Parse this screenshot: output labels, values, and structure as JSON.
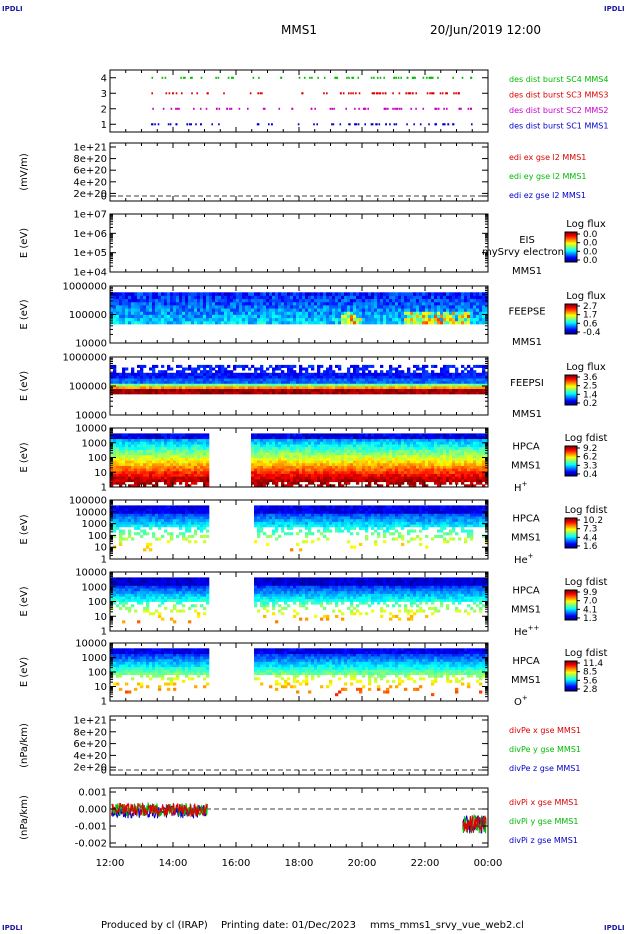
{
  "header": {
    "corner_tl": "IPDLI",
    "corner_tr": "IPDLI",
    "corner_bl": "IPDLI",
    "corner_br": "IPDLI",
    "spacecraft": "MMS1",
    "datetime": "20/Jun/2019 12:00"
  },
  "footer": {
    "produced": "Produced by cl (IRAP)",
    "printing": "Printing date: 01/Dec/2023",
    "file": "mms_mms1_srvy_vue_web2.cl"
  },
  "chart_data": [
    {
      "type": "scatter",
      "yticks": [
        "4",
        "3",
        "2",
        "1"
      ],
      "ylim": [
        0.5,
        4.5
      ],
      "series": [
        {
          "name": "des dist burst SC1 MMS1",
          "y": 1,
          "color": "#0000cc"
        },
        {
          "name": "des dist burst SC2 MMS2",
          "y": 2,
          "color": "#cc00cc"
        },
        {
          "name": "des dist burst SC3 MMS3",
          "y": 3,
          "color": "#dd0000"
        },
        {
          "name": "des dist burst SC4 MMS4",
          "y": 4,
          "color": "#00bb00"
        }
      ]
    },
    {
      "type": "line",
      "ylabel": "(mV/m)",
      "yticks": [
        "1e+21",
        "8e+20",
        "6e+20",
        "4e+20",
        "2e+20",
        "0"
      ],
      "series": [
        {
          "name": "edi ex gse l2 MMS1",
          "color": "#dd0000"
        },
        {
          "name": "edi ey gse l2 MMS1",
          "color": "#00bb00"
        },
        {
          "name": "edi ez gse l2 MMS1",
          "color": "#0000cc"
        }
      ]
    },
    {
      "type": "heatmap",
      "ylabel": "E (eV)",
      "yticks": [
        "1e+07",
        "1e+06",
        "1e+05",
        "1e+04"
      ],
      "instrument": [
        "EIS",
        "MMS1"
      ],
      "overlay_text": "mySrvy electron to",
      "colorbar": {
        "title": "Log flux",
        "ticks": [
          "0.0",
          "0.0",
          "0.0",
          "0.0"
        ]
      }
    },
    {
      "type": "heatmap",
      "ylabel": "E (eV)",
      "yticks": [
        "1000000",
        "100000",
        "10000"
      ],
      "instrument": [
        "FEEPSE",
        "MMS1"
      ],
      "colorbar": {
        "title": "Log flux",
        "ticks": [
          "2.7",
          "1.7",
          "0.6",
          "-0.4"
        ]
      }
    },
    {
      "type": "heatmap",
      "ylabel": "E (eV)",
      "yticks": [
        "1000000",
        "100000",
        "10000"
      ],
      "instrument": [
        "FEEPSI",
        "MMS1"
      ],
      "colorbar": {
        "title": "Log flux",
        "ticks": [
          "3.6",
          "2.5",
          "1.4",
          "0.2"
        ]
      }
    },
    {
      "type": "heatmap",
      "ylabel": "E (eV)",
      "yticks": [
        "10000",
        "1000",
        "100",
        "10",
        "1"
      ],
      "instrument": [
        "HPCA",
        "MMS1",
        "H+"
      ],
      "colorbar": {
        "title": "Log fdist",
        "ticks": [
          "9.2",
          "6.2",
          "3.3",
          "0.4"
        ]
      }
    },
    {
      "type": "heatmap",
      "ylabel": "E (eV)",
      "yticks": [
        "100000",
        "10000",
        "1000",
        "100",
        "10",
        "1"
      ],
      "instrument": [
        "HPCA",
        "MMS1",
        "He+"
      ],
      "colorbar": {
        "title": "Log fdist",
        "ticks": [
          "10.2",
          "7.3",
          "4.4",
          "1.6"
        ]
      }
    },
    {
      "type": "heatmap",
      "ylabel": "E (eV)",
      "yticks": [
        "10000",
        "1000",
        "100",
        "10",
        "1"
      ],
      "instrument": [
        "HPCA",
        "MMS1",
        "He++"
      ],
      "colorbar": {
        "title": "Log fdist",
        "ticks": [
          "9.9",
          "7.0",
          "4.1",
          "1.3"
        ]
      }
    },
    {
      "type": "heatmap",
      "ylabel": "E (eV)",
      "yticks": [
        "10000",
        "1000",
        "100",
        "10",
        "1"
      ],
      "instrument": [
        "HPCA",
        "MMS1",
        "O+"
      ],
      "colorbar": {
        "title": "Log fdist",
        "ticks": [
          "11.4",
          "8.5",
          "5.6",
          "2.8"
        ]
      }
    },
    {
      "type": "line",
      "ylabel": "(nPa/km)",
      "yticks": [
        "1e+21",
        "8e+20",
        "6e+20",
        "4e+20",
        "2e+20",
        "0"
      ],
      "series": [
        {
          "name": "divPe x gse MMS1",
          "color": "#dd0000"
        },
        {
          "name": "divPe y gse MMS1",
          "color": "#00bb00"
        },
        {
          "name": "divPe z gse MMS1",
          "color": "#0000cc"
        }
      ]
    },
    {
      "type": "line",
      "ylabel": "(nPa/km)",
      "yticks": [
        "0.001",
        "0.000",
        "-0.001",
        "-0.002"
      ],
      "series": [
        {
          "name": "divPi x gse MMS1",
          "color": "#dd0000"
        },
        {
          "name": "divPi y gse MMS1",
          "color": "#00bb00"
        },
        {
          "name": "divPi z gse MMS1",
          "color": "#0000cc"
        }
      ]
    }
  ],
  "x_axis": {
    "ticks": [
      "12:00",
      "14:00",
      "16:00",
      "18:00",
      "20:00",
      "22:00",
      "00:00"
    ]
  },
  "colors": {
    "text_blue": "#1a1aa0"
  }
}
